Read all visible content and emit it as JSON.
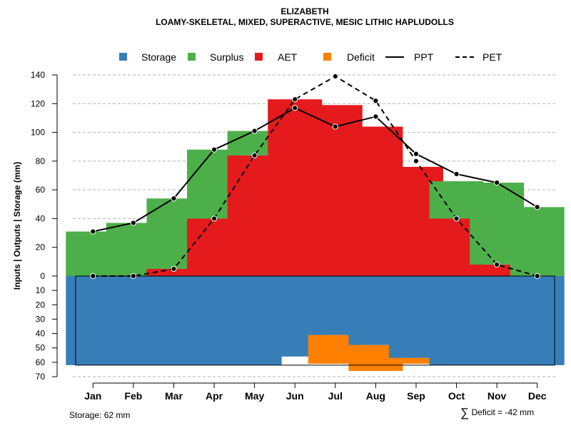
{
  "title": "ELIZABETH",
  "subtitle": "LOAMY-SKELETAL, MIXED, SUPERACTIVE, MESIC LITHIC HAPLUDOLLS",
  "legend": [
    {
      "label": "Storage",
      "kind": "box",
      "color": "#377EB8"
    },
    {
      "label": "Surplus",
      "kind": "box",
      "color": "#4DAF4A"
    },
    {
      "label": "AET",
      "kind": "box",
      "color": "#E41A1C"
    },
    {
      "label": "Deficit",
      "kind": "box",
      "color": "#FF7F00"
    },
    {
      "label": "PPT",
      "kind": "line"
    },
    {
      "label": "PET",
      "kind": "dashed"
    }
  ],
  "footer": {
    "storage": "Storage: 62 mm",
    "deficit_symbol": "∑",
    "deficit": "Deficit = -42 mm"
  },
  "chart_data": {
    "type": "bar",
    "ylabel": "Inputs | Outputs | Storage     (mm)",
    "categories": [
      "Jan",
      "Feb",
      "Mar",
      "Apr",
      "May",
      "Jun",
      "Jul",
      "Aug",
      "Sep",
      "Oct",
      "Nov",
      "Dec"
    ],
    "upper_ylim": [
      0,
      140
    ],
    "upper_ticks": [
      0,
      20,
      40,
      60,
      80,
      100,
      120,
      140
    ],
    "lower_ylim": [
      0,
      70
    ],
    "lower_ticks": [
      10,
      20,
      30,
      40,
      50,
      60,
      70
    ],
    "storage_capacity": 62,
    "series": [
      {
        "name": "AET",
        "color": "#E41A1C",
        "values": [
          0,
          0,
          5,
          40,
          84,
          123,
          119,
          104,
          76,
          40,
          8,
          0
        ]
      },
      {
        "name": "Surplus",
        "color": "#4DAF4A",
        "values": [
          31,
          37,
          49,
          48,
          17,
          0,
          0,
          0,
          0,
          26,
          57,
          48
        ]
      },
      {
        "name": "Storage",
        "color": "#377EB8",
        "values": [
          62,
          62,
          62,
          62,
          62,
          56,
          41,
          48,
          57,
          62,
          62,
          62
        ]
      },
      {
        "name": "Deficit",
        "color": "#FF7F00",
        "values": [
          0,
          0,
          0,
          0,
          0,
          0,
          20,
          18,
          4,
          0,
          0,
          0
        ]
      },
      {
        "name": "PPT",
        "values": [
          31,
          37,
          54,
          88,
          101,
          117,
          104,
          111,
          85,
          71,
          65,
          48
        ]
      },
      {
        "name": "PET",
        "values": [
          0,
          0,
          5,
          40,
          84,
          123,
          139,
          122,
          80,
          40,
          8,
          0
        ]
      }
    ]
  }
}
